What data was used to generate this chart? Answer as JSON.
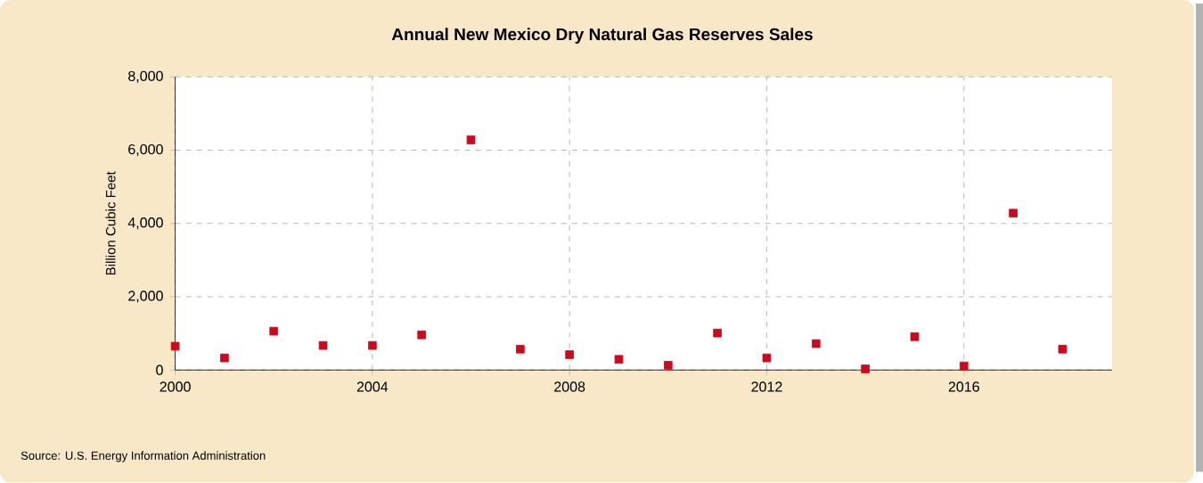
{
  "chart_data": {
    "type": "scatter",
    "title": "Annual New Mexico Dry Natural Gas Reserves Sales",
    "ylabel": "Billion Cubic Feet",
    "x": [
      2000,
      2001,
      2002,
      2003,
      2004,
      2005,
      2006,
      2007,
      2008,
      2009,
      2010,
      2011,
      2012,
      2013,
      2014,
      2015,
      2016,
      2017,
      2018
    ],
    "series": [
      {
        "color": "#cc0a1e",
        "values": [
          650,
          330,
          1060,
          670,
          670,
          960,
          6280,
          570,
          420,
          290,
          130,
          1010,
          330,
          720,
          30,
          910,
          110,
          4280,
          570
        ]
      }
    ],
    "xlim": [
      2000,
      2019
    ],
    "xticks": [
      2000,
      2004,
      2008,
      2012,
      2016
    ],
    "ylim": [
      0,
      8000
    ],
    "yticks": [
      {
        "value": 0,
        "label": "0"
      },
      {
        "value": 2000,
        "label": "2,000"
      },
      {
        "value": 4000,
        "label": "4,000"
      },
      {
        "value": 6000,
        "label": "6,000"
      },
      {
        "value": 8000,
        "label": "8,000"
      }
    ],
    "grid": true,
    "marker": "square",
    "annotations": [
      "Source: U.S. Energy Information Administration"
    ]
  }
}
